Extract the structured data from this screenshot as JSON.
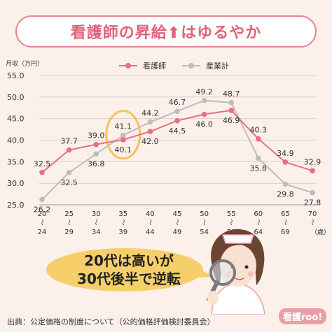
{
  "title": {
    "main": "看護師の昇給",
    "arrow": "⬆",
    "tail": "はゆるやか"
  },
  "source": "出典：公定価格の制度について（公的価格評価検討委員会）",
  "callout": {
    "line1": "20代は高いが",
    "line2": "30代後半で逆転"
  },
  "brand": "看護roo!",
  "colors": {
    "nurse": "#e8707f",
    "industry": "#bdbdbd",
    "highlight": "#f3c35b",
    "title": "#e0637b"
  },
  "chart_data": {
    "type": "line",
    "ylabel": "月収（万円）",
    "xunit": "（歳）",
    "ylim": [
      25,
      55
    ],
    "yticks": [
      "55.0",
      "50.0",
      "45.0",
      "40.0",
      "35.0",
      "30.0",
      "25.0"
    ],
    "categories": [
      [
        "20",
        "24"
      ],
      [
        "25",
        "29"
      ],
      [
        "30",
        "34"
      ],
      [
        "35",
        "39"
      ],
      [
        "40",
        "44"
      ],
      [
        "45",
        "49"
      ],
      [
        "50",
        "54"
      ],
      [
        "55",
        "59"
      ],
      [
        "60",
        "64"
      ],
      [
        "65",
        "69"
      ],
      [
        "70",
        ""
      ]
    ],
    "tilde": "〜",
    "series": [
      {
        "name": "看護師",
        "values": [
          32.5,
          37.7,
          39.0,
          40.1,
          42.0,
          44.5,
          46.0,
          46.9,
          40.3,
          34.9,
          32.9
        ],
        "labels": [
          "32.5",
          "37.7",
          "39.0",
          "40.1",
          "42.0",
          "44.5",
          "46.0",
          "46.9",
          "40.3",
          "34.9",
          "32.9"
        ]
      },
      {
        "name": "産業計",
        "values": [
          26.2,
          32.5,
          36.8,
          41.1,
          44.2,
          46.7,
          49.2,
          48.7,
          35.8,
          29.8,
          27.8
        ],
        "labels": [
          "26.2",
          "32.5",
          "36.8",
          "41.1",
          "44.2",
          "46.7",
          "49.2",
          "48.7",
          "35.8",
          "29.8",
          "27.8"
        ]
      }
    ],
    "highlight_index": 3,
    "legend": "top"
  }
}
